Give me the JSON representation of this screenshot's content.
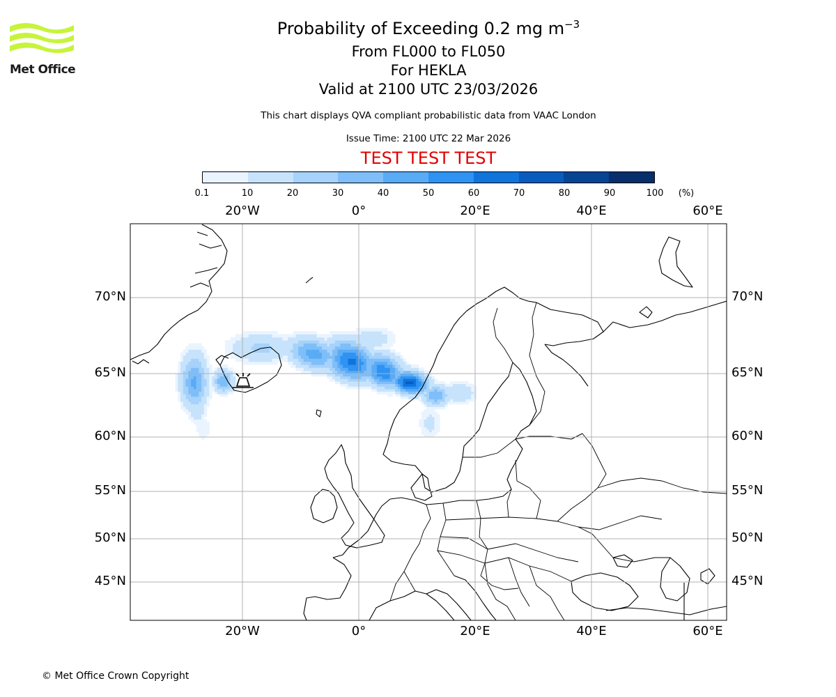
{
  "header": {
    "logo_text": "Met Office",
    "title_prefix": "Probability of Exceeding 0.2 mg m",
    "title_exponent": "−3",
    "level_range": "From FL000 to FL050",
    "volcano": "For HEKLA",
    "valid_time": "Valid at 2100 UTC 23/03/2026",
    "description": "This chart displays QVA compliant probabilistic data from VAAC London",
    "issue_time": "Issue Time: 2100 UTC 22 Mar 2026",
    "test_banner": "TEST TEST TEST"
  },
  "colorbar": {
    "ticks": [
      "0.1",
      "10",
      "20",
      "30",
      "40",
      "50",
      "60",
      "70",
      "80",
      "90",
      "100"
    ],
    "unit": "(%)",
    "colors": [
      "#eaf4ff",
      "#c7e3fc",
      "#a6d2fb",
      "#7fbef8",
      "#5aabf6",
      "#2e93f2",
      "#0f74dc",
      "#0a5bbe",
      "#064494",
      "#062f6b"
    ]
  },
  "map": {
    "lon_labels": [
      "20°W",
      "0°",
      "20°E",
      "40°E",
      "60°E"
    ],
    "lat_labels": [
      "70°N",
      "65°N",
      "60°N",
      "55°N",
      "50°N",
      "45°N"
    ],
    "volcano_marker": "Hekla volcano symbol"
  },
  "chart_data": {
    "type": "heatmap",
    "title": "Probability of Exceeding 0.2 mg m−3",
    "subtitle": "From FL000 to FL050 — For HEKLA — Valid at 2100 UTC 23/03/2026",
    "value_unit": "%",
    "color_levels": [
      0.1,
      10,
      20,
      30,
      40,
      50,
      60,
      70,
      80,
      90,
      100
    ],
    "lon_range": [
      -40,
      63
    ],
    "lat_range": [
      42,
      75
    ],
    "plume_regions": [
      {
        "name": "southwest lobe off Iceland",
        "lon": -28,
        "lat": 64.3,
        "max_probability": 40
      },
      {
        "name": "east plume core north of Faroes",
        "lon": -2,
        "lat": 65.8,
        "max_probability": 60
      },
      {
        "name": "Norwegian coast core",
        "lon": 8,
        "lat": 64.3,
        "max_probability": 70
      },
      {
        "name": "tail into Sweden/Finland",
        "lon": 19,
        "lat": 63.5,
        "max_probability": 20
      }
    ]
  },
  "footer": {
    "copyright": "© Met Office Crown Copyright"
  }
}
